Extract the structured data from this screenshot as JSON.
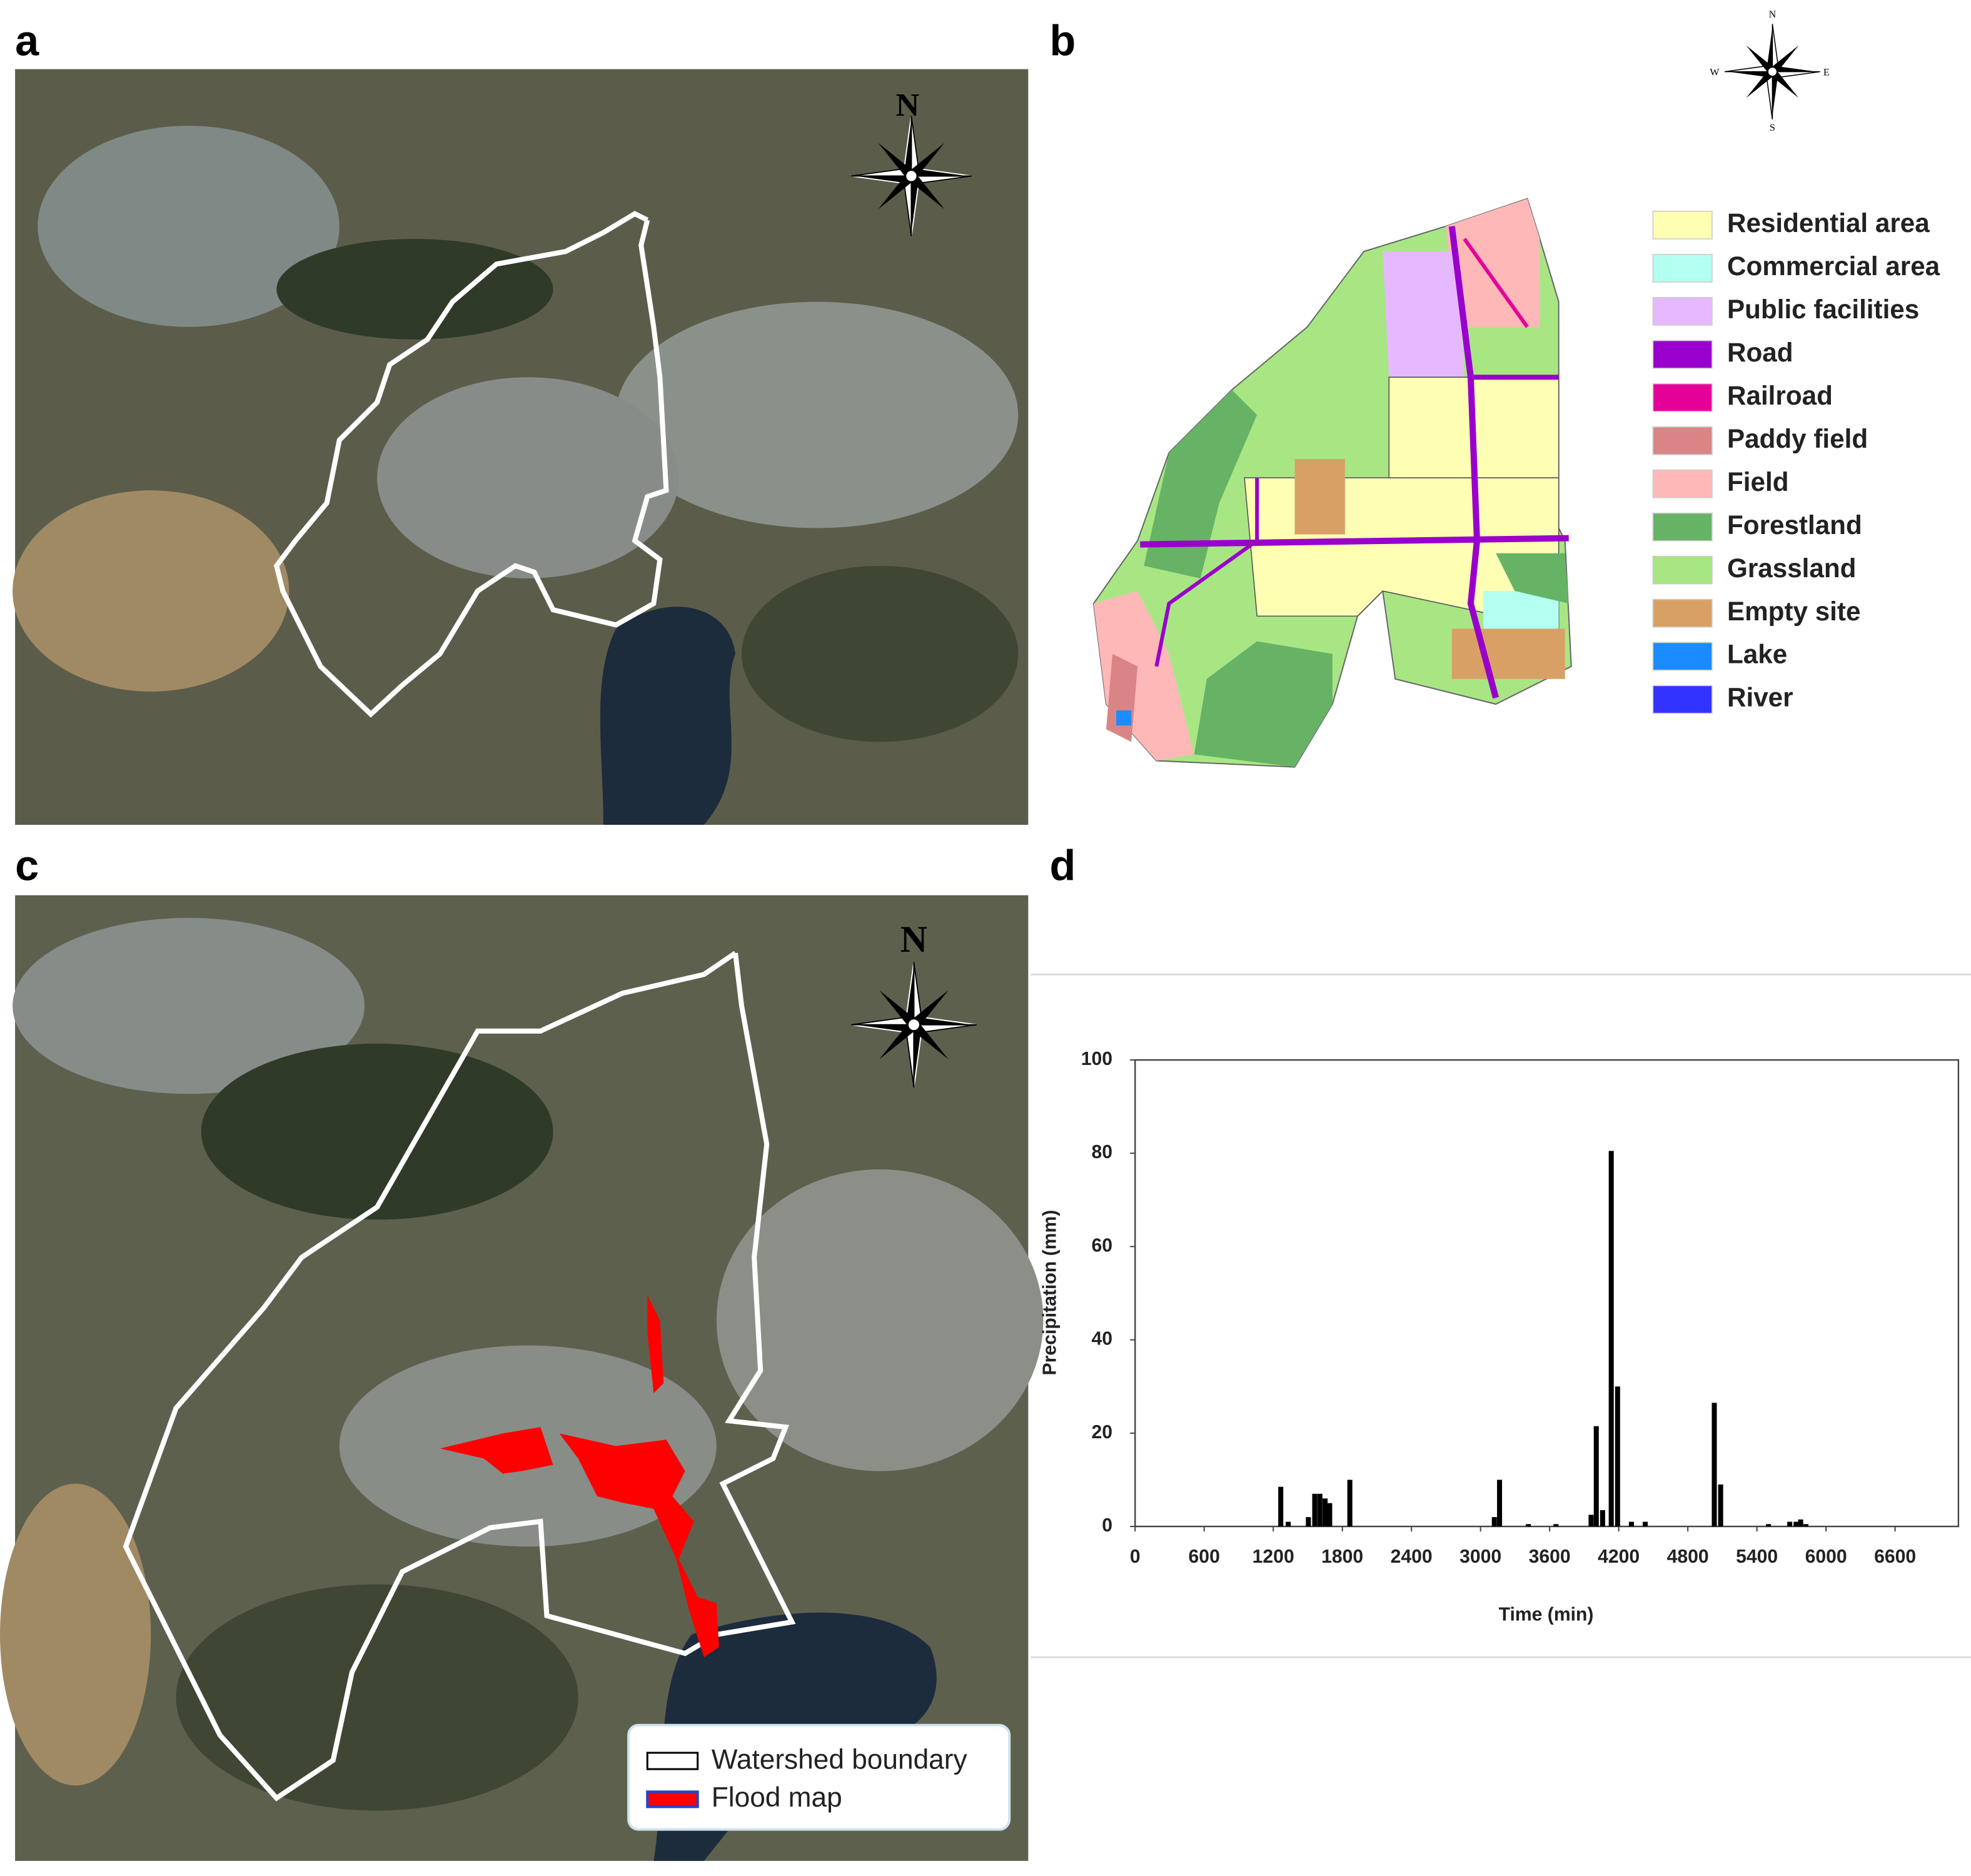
{
  "panel_labels": [
    "a",
    "b",
    "c",
    "d"
  ],
  "compass_a": {
    "north": "N"
  },
  "compass_b": {
    "north": "N",
    "east": "E",
    "south": "S",
    "west": "W"
  },
  "compass_c": {
    "north": "N"
  },
  "land_use_legend": [
    {
      "label": "Residential area",
      "color": "#ffffb3"
    },
    {
      "label": "Commercial area",
      "color": "#b3fff0"
    },
    {
      "label": "Public facilities",
      "color": "#e6b8ff"
    },
    {
      "label": "Road",
      "color": "#9900cc"
    },
    {
      "label": "Railroad",
      "color": "#e6009a"
    },
    {
      "label": "Paddy field",
      "color": "#d98585"
    },
    {
      "label": "Field",
      "color": "#ffb8b8"
    },
    {
      "label": "Forestland",
      "color": "#66b366"
    },
    {
      "label": "Grassland",
      "color": "#a8e684"
    },
    {
      "label": "Empty site",
      "color": "#d9a066"
    },
    {
      "label": "Lake",
      "color": "#1a8cff"
    },
    {
      "label": "River",
      "color": "#3333ff"
    }
  ],
  "flood_legend": [
    {
      "label": "Watershed boundary"
    },
    {
      "label": "Flood map"
    }
  ],
  "chart_data": {
    "type": "bar",
    "color": "#000000",
    "ylabel": "Precipitation  (mm)",
    "xlabel": "Time (min)",
    "x": [
      1265,
      1330,
      1505,
      1560,
      1605,
      1650,
      1690,
      1865,
      3120,
      3165,
      3415,
      3655,
      3960,
      4005,
      4060,
      4135,
      4190,
      4310,
      4430,
      5030,
      5085,
      5500,
      5685,
      5740,
      5780,
      5825
    ],
    "values": [
      8.5,
      1,
      2,
      7,
      7,
      6,
      5,
      10,
      2,
      10,
      0.5,
      0.5,
      2.5,
      21.5,
      3.5,
      80.5,
      30,
      1,
      1,
      26.5,
      9,
      0.5,
      1,
      1,
      1.5,
      0.5
    ],
    "xlim": [
      0,
      7150
    ],
    "xticks": [
      0,
      600,
      1200,
      1800,
      2400,
      3000,
      3600,
      4200,
      4800,
      5400,
      6000,
      6600
    ],
    "ylim": [
      0,
      100
    ],
    "yticks": [
      0,
      20,
      40,
      60,
      80,
      100
    ]
  }
}
